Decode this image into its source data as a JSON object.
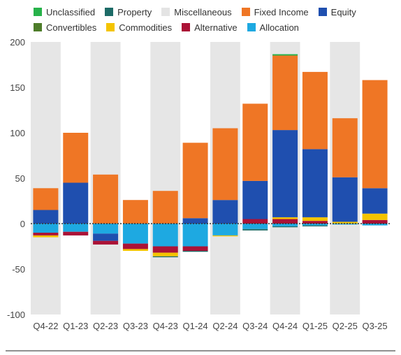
{
  "chart_data": {
    "type": "bar",
    "stacked": true,
    "categories": [
      "Q4-22",
      "Q1-23",
      "Q2-23",
      "Q3-23",
      "Q4-23",
      "Q1-24",
      "Q2-24",
      "Q3-24",
      "Q4-24",
      "Q1-25",
      "Q2-25",
      "Q3-25"
    ],
    "yticks": [
      200,
      150,
      100,
      50,
      0,
      -50,
      -100
    ],
    "ylim": [
      -110,
      205
    ],
    "grid": false,
    "legend_position": "top",
    "series": [
      {
        "name": "Unclassified",
        "color": "#27b24a",
        "values": [
          0,
          0,
          0,
          0,
          0,
          0,
          0,
          0,
          1.5,
          0,
          0,
          0
        ]
      },
      {
        "name": "Property",
        "color": "#1d6b67",
        "values": [
          0,
          0,
          0,
          0,
          -1,
          -1,
          0,
          -1.5,
          -1,
          -1,
          0,
          0
        ]
      },
      {
        "name": "Miscellaneous",
        "color": "#e4e4e4",
        "values": [
          0,
          0,
          0,
          0,
          0,
          0,
          0,
          0,
          0,
          0,
          0,
          0
        ]
      },
      {
        "name": "Fixed Income",
        "color": "#ef7625",
        "values": [
          24,
          55,
          54,
          26,
          36,
          83,
          79,
          85,
          82,
          85,
          65,
          119
        ]
      },
      {
        "name": "Equity",
        "color": "#1f4faf",
        "values": [
          15,
          45,
          -8,
          0,
          0,
          6,
          26,
          42,
          96,
          75,
          49,
          28
        ]
      },
      {
        "name": "Convertibles",
        "color": "#4e7d2a",
        "values": [
          0,
          0,
          0,
          0,
          0,
          0,
          0,
          0,
          0,
          0,
          0,
          0
        ]
      },
      {
        "name": "Commodities",
        "color": "#f4c400",
        "values": [
          -2,
          0,
          0,
          -2,
          -4,
          0,
          -1,
          0,
          2,
          4,
          2,
          7
        ]
      },
      {
        "name": "Alternative",
        "color": "#ab1236",
        "values": [
          -3,
          -4,
          -4,
          -6,
          -7,
          -5,
          0,
          5,
          5,
          3,
          0,
          4
        ]
      },
      {
        "name": "Allocation",
        "color": "#1ea9e1",
        "values": [
          -10,
          -9,
          -11,
          -22,
          -25,
          -25,
          -13,
          -6,
          -3,
          -2,
          -1,
          -2
        ]
      }
    ]
  }
}
